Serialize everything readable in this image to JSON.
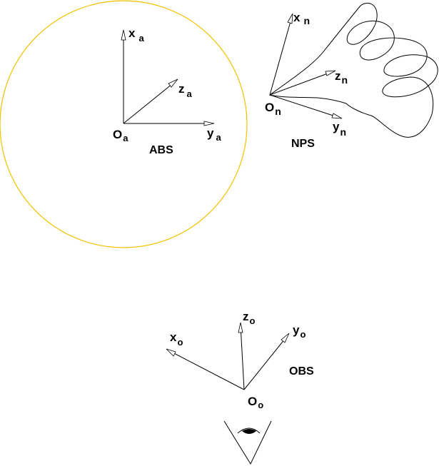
{
  "frames": {
    "abs": {
      "name": "ABS",
      "origin": {
        "base": "O",
        "sub": "a"
      },
      "axes": {
        "x": {
          "base": "x",
          "sub": "a"
        },
        "y": {
          "base": "y",
          "sub": "a"
        },
        "z": {
          "base": "z",
          "sub": "a"
        }
      },
      "circle_color": "#f2c200"
    },
    "nps": {
      "name": "NPS",
      "origin": {
        "base": "O",
        "sub": "n"
      },
      "axes": {
        "x": {
          "base": "x",
          "sub": "n"
        },
        "y": {
          "base": "y",
          "sub": "n"
        },
        "z": {
          "base": "z",
          "sub": "n"
        }
      }
    },
    "obs": {
      "name": "OBS",
      "origin": {
        "base": "O",
        "sub": "o"
      },
      "axes": {
        "x": {
          "base": "x",
          "sub": "o"
        },
        "y": {
          "base": "y",
          "sub": "o"
        },
        "z": {
          "base": "z",
          "sub": "o"
        }
      }
    }
  },
  "icons": {
    "eye": "eye-icon"
  }
}
